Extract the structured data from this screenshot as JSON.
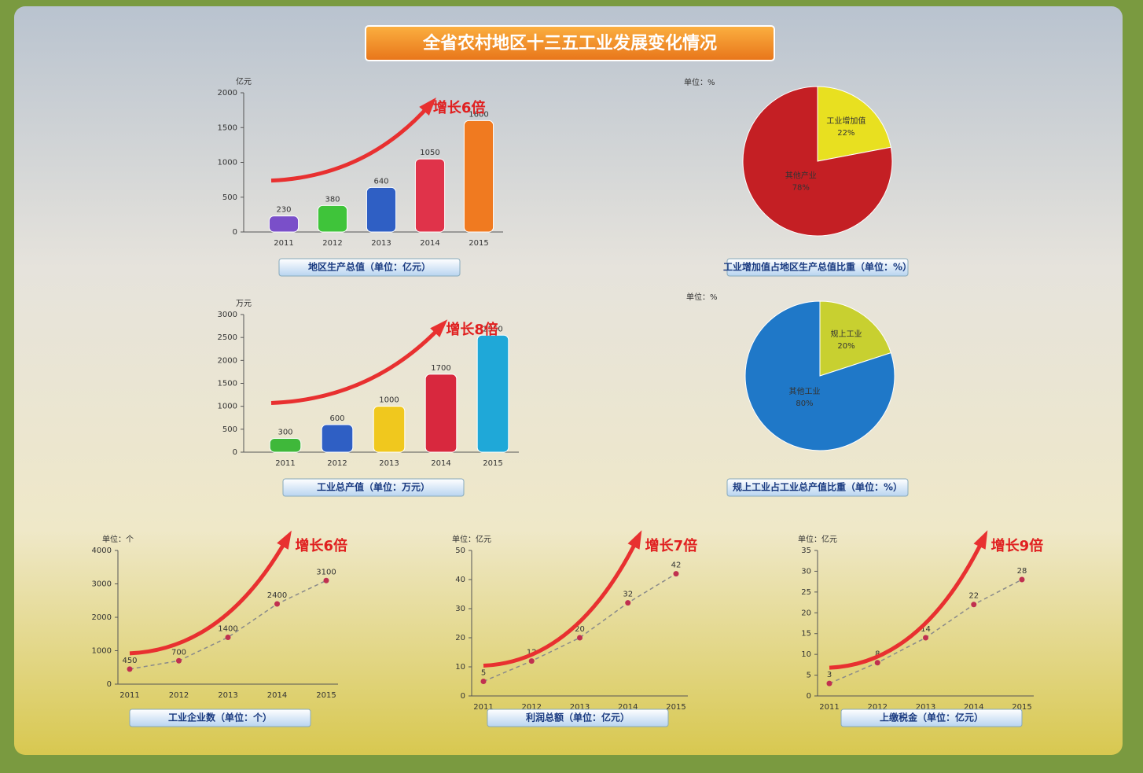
{
  "title": "全省农村地区十三五工业发展变化情况",
  "chart_data": [
    {
      "type": "bar",
      "y_label": "亿元",
      "categories": [
        "2011",
        "2012",
        "2013",
        "2014",
        "2015"
      ],
      "values": [
        230,
        380,
        640,
        1050,
        1600
      ],
      "colors": [
        "#7a4fc9",
        "#3fc43a",
        "#2f5fc4",
        "#e0334a",
        "#f07a20"
      ],
      "ylim": [
        0,
        2000
      ],
      "yticks": [
        0,
        500,
        1000,
        1500,
        2000
      ],
      "annotation": "增长6倍",
      "caption": "地区生产总值（单位：亿元）"
    },
    {
      "type": "pie",
      "y_label": "单位：%",
      "labels": [
        "工业增加值",
        "其他产业"
      ],
      "values": [
        22,
        78
      ],
      "value_labels": [
        "22%",
        "78%"
      ],
      "colors": [
        "#e8e020",
        "#c41f24"
      ],
      "caption": "工业增加值占地区生产总值比重（单位：%）"
    },
    {
      "type": "bar",
      "y_label": "万元",
      "categories": [
        "2011",
        "2012",
        "2013",
        "2014",
        "2015"
      ],
      "values": [
        300,
        600,
        1000,
        1700,
        2550
      ],
      "colors": [
        "#3fb83a",
        "#2f5fc4",
        "#f0c81e",
        "#d8283e",
        "#1fa8d8"
      ],
      "ylim": [
        0,
        3000
      ],
      "yticks": [
        0,
        500,
        1000,
        1500,
        2000,
        2500,
        3000
      ],
      "annotation": "增长8倍",
      "caption": "工业总产值（单位：万元）"
    },
    {
      "type": "pie",
      "y_label": "单位：%",
      "labels": [
        "规上工业",
        "其他工业"
      ],
      "values": [
        20,
        80
      ],
      "value_labels": [
        "20%",
        "80%"
      ],
      "colors": [
        "#c8d030",
        "#1f78c8"
      ],
      "caption": "规上工业占工业总产值比重（单位：%）"
    },
    {
      "type": "line",
      "y_label": "单位：个",
      "x": [
        "2011",
        "2012",
        "2013",
        "2014",
        "2015"
      ],
      "values": [
        450,
        700,
        1400,
        2400,
        3100
      ],
      "color": "#8a8a8a",
      "ylim": [
        0,
        4000
      ],
      "yticks": [
        0,
        1000,
        2000,
        3000,
        4000
      ],
      "annotation": "增长6倍",
      "caption": "工业企业数（单位：个）"
    },
    {
      "type": "line",
      "y_label": "单位：亿元",
      "x": [
        "2011",
        "2012",
        "2013",
        "2014",
        "2015"
      ],
      "values": [
        5,
        12,
        20,
        32,
        42
      ],
      "color": "#8a8a8a",
      "ylim": [
        0,
        50
      ],
      "yticks": [
        0,
        10,
        20,
        30,
        40,
        50
      ],
      "annotation": "增长7倍",
      "caption": "利润总额（单位：亿元）"
    },
    {
      "type": "line",
      "y_label": "单位：亿元",
      "x": [
        "2011",
        "2012",
        "2013",
        "2014",
        "2015"
      ],
      "values": [
        3,
        8,
        14,
        22,
        28
      ],
      "color": "#8a8a8a",
      "ylim": [
        0,
        35
      ],
      "yticks": [
        0,
        5,
        10,
        15,
        20,
        25,
        30,
        35
      ],
      "annotation": "增长9倍",
      "caption": "上缴税金（单位：亿元）"
    }
  ]
}
